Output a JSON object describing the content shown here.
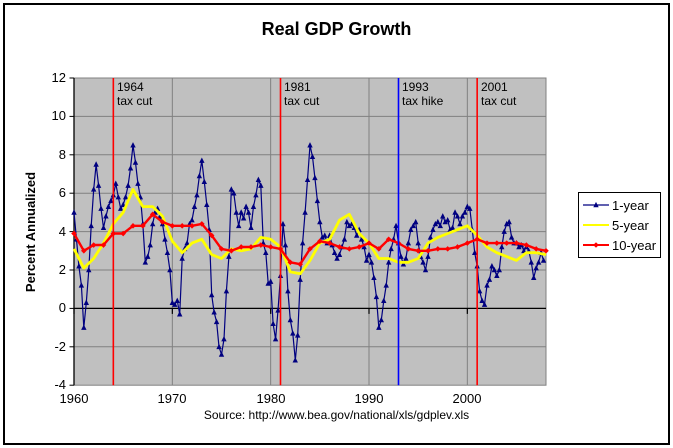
{
  "figure": {
    "source": "Source: http://www.bea.gov/national/xls/gdplev.xls"
  },
  "chart_data": {
    "type": "line",
    "title": "Real GDP Growth",
    "xlabel": "",
    "ylabel": "Percent Annualized",
    "xlim": [
      1960,
      2008
    ],
    "ylim": [
      -4,
      12
    ],
    "x_tick_labels": [
      "1960",
      "1970",
      "1980",
      "1990",
      "2000"
    ],
    "y_tick_labels": [
      "12",
      "10",
      "8",
      "6",
      "4",
      "2",
      "0",
      "-2",
      "-4"
    ],
    "grid": true,
    "plot_bg_color": "#C0C0C0",
    "gridline_color": "#808080",
    "axis_color": "#000000",
    "legend_position": "right",
    "series": [
      {
        "name": "1-year",
        "color": "#000080",
        "marker": "triangle",
        "line_width": 1.2,
        "x_start": 1960,
        "x_step": 0.25,
        "values": [
          5.0,
          3.6,
          2.2,
          1.2,
          -1.0,
          0.3,
          2.0,
          4.3,
          6.2,
          7.5,
          6.4,
          5.2,
          4.2,
          4.8,
          5.3,
          5.6,
          5.9,
          6.5,
          5.8,
          5.2,
          5.4,
          5.8,
          6.4,
          7.3,
          8.5,
          7.6,
          6.5,
          5.8,
          4.4,
          2.4,
          2.7,
          3.3,
          4.4,
          5.0,
          5.2,
          4.8,
          4.4,
          3.6,
          2.9,
          2.0,
          0.3,
          0.2,
          0.4,
          -0.3,
          2.6,
          3.1,
          3.4,
          4.4,
          4.6,
          5.3,
          5.9,
          6.9,
          7.7,
          6.6,
          5.4,
          4.1,
          0.7,
          -0.2,
          -0.7,
          -2.0,
          -2.4,
          -1.6,
          0.9,
          2.7,
          6.2,
          6.0,
          5.0,
          4.3,
          5.0,
          4.7,
          5.3,
          5.0,
          4.2,
          5.3,
          5.9,
          6.7,
          6.4,
          3.4,
          2.9,
          1.3,
          1.4,
          -0.8,
          -1.6,
          -0.1,
          1.7,
          4.4,
          3.3,
          0.9,
          -0.6,
          -1.3,
          -2.7,
          -1.4,
          1.5,
          3.4,
          5.0,
          6.7,
          8.5,
          7.9,
          6.8,
          5.6,
          4.5,
          3.7,
          3.8,
          3.4,
          3.8,
          3.3,
          2.9,
          2.6,
          2.8,
          3.2,
          3.6,
          4.5,
          4.3,
          4.4,
          4.2,
          3.8,
          4.1,
          3.6,
          3.2,
          2.5,
          2.8,
          2.4,
          1.6,
          0.6,
          -1.0,
          -0.6,
          0.4,
          1.2,
          2.4,
          3.1,
          3.6,
          4.3,
          3.4,
          2.7,
          2.3,
          2.6,
          3.4,
          4.1,
          4.3,
          4.5,
          3.4,
          2.7,
          2.4,
          2.0,
          2.7,
          3.7,
          4.1,
          4.4,
          4.5,
          4.3,
          4.8,
          4.5,
          4.6,
          4.1,
          4.2,
          5.0,
          4.8,
          4.4,
          4.8,
          5.0,
          5.3,
          5.2,
          4.1,
          2.9,
          2.2,
          0.9,
          0.4,
          0.2,
          1.2,
          1.5,
          2.2,
          2.0,
          1.7,
          2.0,
          3.2,
          4.0,
          4.4,
          4.5,
          3.7,
          3.4,
          3.4,
          3.2,
          3.3,
          3.0,
          3.2,
          3.0,
          2.4,
          1.6,
          2.1,
          2.4,
          2.9,
          2.5
        ]
      },
      {
        "name": "5-year",
        "color": "#FFFF00",
        "marker": "none",
        "line_width": 2.8,
        "x_start": 1960,
        "x_step": 1,
        "values": [
          3.1,
          2.1,
          2.6,
          3.4,
          4.4,
          5.0,
          6.2,
          5.3,
          5.3,
          4.8,
          3.5,
          2.9,
          3.4,
          3.6,
          2.8,
          2.6,
          3.1,
          3.0,
          3.1,
          3.7,
          3.6,
          3.2,
          1.9,
          1.8,
          2.5,
          3.4,
          3.6,
          4.6,
          4.9,
          3.9,
          3.4,
          2.6,
          2.6,
          2.4,
          2.4,
          2.6,
          3.4,
          3.7,
          3.9,
          4.1,
          4.3,
          3.8,
          3.2,
          2.9,
          2.7,
          2.5,
          2.9,
          2.9,
          2.8
        ]
      },
      {
        "name": "10-year",
        "color": "#FF0000",
        "marker": "diamond",
        "line_width": 2.4,
        "x_start": 1960,
        "x_step": 1,
        "values": [
          3.9,
          3.0,
          3.3,
          3.3,
          3.9,
          3.9,
          4.3,
          4.3,
          4.9,
          4.5,
          4.3,
          4.3,
          4.3,
          4.4,
          3.8,
          3.1,
          3.0,
          3.2,
          3.2,
          3.3,
          3.2,
          3.1,
          2.4,
          2.3,
          3.1,
          3.5,
          3.4,
          3.2,
          3.1,
          3.2,
          3.4,
          3.1,
          3.6,
          3.4,
          3.1,
          3.0,
          3.0,
          3.1,
          3.1,
          3.2,
          3.4,
          3.6,
          3.4,
          3.4,
          3.4,
          3.4,
          3.3,
          3.1,
          3.0
        ]
      }
    ],
    "event_lines": [
      {
        "x": 1964,
        "color": "#FF0000",
        "line1": "1964",
        "line2": "tax cut"
      },
      {
        "x": 1981,
        "color": "#FF0000",
        "line1": "1981",
        "line2": "tax cut"
      },
      {
        "x": 1993,
        "color": "#0000FF",
        "line1": "1993",
        "line2": "tax hike"
      },
      {
        "x": 2001,
        "color": "#FF0000",
        "line1": "2001",
        "line2": "tax cut"
      }
    ]
  }
}
